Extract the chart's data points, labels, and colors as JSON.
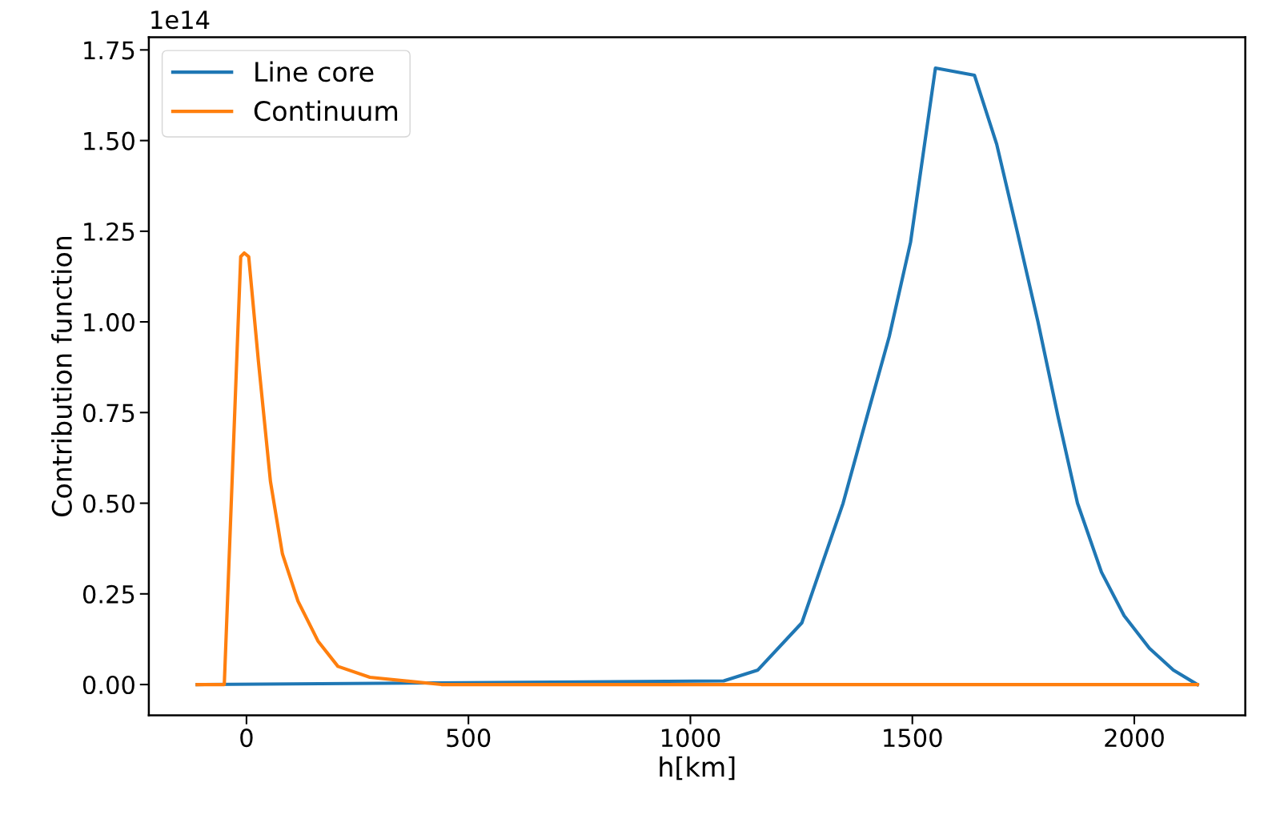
{
  "chart_data": {
    "type": "line",
    "xlabel": "h[km]",
    "ylabel": "Contribution function",
    "annotations": [
      "1e14"
    ],
    "series": [
      {
        "name": "Line core",
        "color": "#1f77b4",
        "x": [
          -111,
          1075,
          1152,
          1251,
          1344,
          1398,
          1448,
          1496,
          1552,
          1640,
          1690,
          1738,
          1783,
          1828,
          1872,
          1926,
          1977,
          2034,
          2088,
          2142
        ],
        "values": [
          0.0,
          0.01,
          0.04,
          0.17,
          0.5,
          0.74,
          0.96,
          1.22,
          1.7,
          1.68,
          1.49,
          1.24,
          1.0,
          0.74,
          0.5,
          0.31,
          0.19,
          0.1,
          0.04,
          0.0
        ]
      },
      {
        "name": "Continuum",
        "color": "#ff7f0e",
        "x": [
          -111,
          -50,
          -13,
          -5,
          5,
          27,
          54,
          81,
          116,
          161,
          206,
          278,
          439,
          2142
        ],
        "values": [
          0.0,
          0.0,
          1.18,
          1.19,
          1.18,
          0.89,
          0.56,
          0.36,
          0.23,
          0.12,
          0.05,
          0.02,
          0.0,
          0.0
        ]
      }
    ],
    "xlim": [
      -220,
      2250
    ],
    "ylim": [
      -0.085,
      1.785
    ],
    "xticks": [
      0,
      500,
      1000,
      1500,
      2000
    ],
    "yticks": [
      {
        "value": 0,
        "label": "0.00"
      },
      {
        "value": 0.25,
        "label": "0.25"
      },
      {
        "value": 0.5,
        "label": "0.50"
      },
      {
        "value": 0.75,
        "label": "0.75"
      },
      {
        "value": 1.0,
        "label": "1.00"
      },
      {
        "value": 1.25,
        "label": "1.25"
      },
      {
        "value": 1.5,
        "label": "1.50"
      },
      {
        "value": 1.75,
        "label": "1.75"
      }
    ],
    "legend": "top left",
    "grid": false,
    "line_style": "solid",
    "marker": "none"
  }
}
